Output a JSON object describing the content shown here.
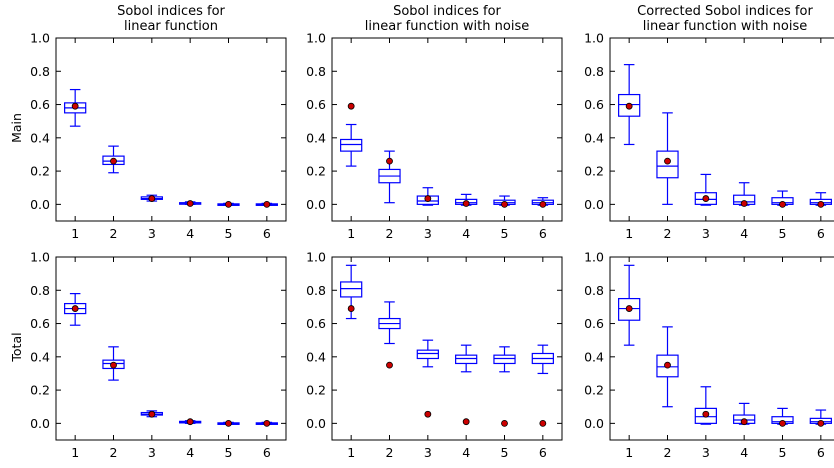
{
  "figure": {
    "row_labels": [
      "Main",
      "Total"
    ],
    "colors": {
      "box": "#0000ff",
      "median": "#0000ff",
      "point_fill": "#cc0000",
      "point_edge": "#000000",
      "frame": "#000000"
    }
  },
  "chart_data": [
    {
      "type": "box",
      "title": [
        "Sobol indices for",
        "linear function"
      ],
      "ylabel": "Main",
      "categories": [
        "1",
        "2",
        "3",
        "4",
        "5",
        "6"
      ],
      "ylim": [
        -0.1,
        1.0
      ],
      "yticks": [
        "0.0",
        "0.2",
        "0.4",
        "0.6",
        "0.8",
        "1.0"
      ],
      "boxes": [
        {
          "whislo": 0.47,
          "q1": 0.55,
          "med": 0.58,
          "q3": 0.61,
          "whishi": 0.69
        },
        {
          "whislo": 0.19,
          "q1": 0.24,
          "med": 0.26,
          "q3": 0.29,
          "whishi": 0.35
        },
        {
          "whislo": 0.02,
          "q1": 0.03,
          "med": 0.035,
          "q3": 0.045,
          "whishi": 0.055
        },
        {
          "whislo": 0.0,
          "q1": 0.005,
          "med": 0.007,
          "q3": 0.01,
          "whishi": 0.015
        },
        {
          "whislo": -0.005,
          "q1": -0.002,
          "med": 0.0,
          "q3": 0.003,
          "whishi": 0.006
        },
        {
          "whislo": -0.005,
          "q1": -0.002,
          "med": 0.0,
          "q3": 0.003,
          "whishi": 0.006
        }
      ],
      "points": [
        0.59,
        0.26,
        0.035,
        0.005,
        0.0,
        0.0
      ]
    },
    {
      "type": "box",
      "title": [
        "Sobol indices for",
        "linear function with noise"
      ],
      "ylabel": "",
      "categories": [
        "1",
        "2",
        "3",
        "4",
        "5",
        "6"
      ],
      "ylim": [
        -0.1,
        1.0
      ],
      "yticks": [
        "0.0",
        "0.2",
        "0.4",
        "0.6",
        "0.8",
        "1.0"
      ],
      "boxes": [
        {
          "whislo": 0.23,
          "q1": 0.32,
          "med": 0.36,
          "q3": 0.39,
          "whishi": 0.48
        },
        {
          "whislo": 0.01,
          "q1": 0.13,
          "med": 0.17,
          "q3": 0.21,
          "whishi": 0.32
        },
        {
          "whislo": -0.005,
          "q1": 0.0,
          "med": 0.02,
          "q3": 0.05,
          "whishi": 0.1
        },
        {
          "whislo": -0.005,
          "q1": 0.0,
          "med": 0.01,
          "q3": 0.03,
          "whishi": 0.06
        },
        {
          "whislo": -0.005,
          "q1": 0.0,
          "med": 0.01,
          "q3": 0.025,
          "whishi": 0.05
        },
        {
          "whislo": -0.005,
          "q1": 0.0,
          "med": 0.01,
          "q3": 0.025,
          "whishi": 0.04
        }
      ],
      "points": [
        0.59,
        0.26,
        0.035,
        0.005,
        0.0,
        0.0
      ]
    },
    {
      "type": "box",
      "title": [
        "Corrected Sobol indices for",
        "linear function with noise"
      ],
      "ylabel": "",
      "categories": [
        "1",
        "2",
        "3",
        "4",
        "5",
        "6"
      ],
      "ylim": [
        -0.1,
        1.0
      ],
      "yticks": [
        "0.0",
        "0.2",
        "0.4",
        "0.6",
        "0.8",
        "1.0"
      ],
      "boxes": [
        {
          "whislo": 0.36,
          "q1": 0.53,
          "med": 0.6,
          "q3": 0.66,
          "whishi": 0.84
        },
        {
          "whislo": 0.0,
          "q1": 0.16,
          "med": 0.23,
          "q3": 0.32,
          "whishi": 0.55
        },
        {
          "whislo": -0.005,
          "q1": 0.0,
          "med": 0.03,
          "q3": 0.07,
          "whishi": 0.18
        },
        {
          "whislo": -0.005,
          "q1": 0.0,
          "med": 0.015,
          "q3": 0.055,
          "whishi": 0.13
        },
        {
          "whislo": -0.005,
          "q1": 0.0,
          "med": 0.01,
          "q3": 0.04,
          "whishi": 0.08
        },
        {
          "whislo": -0.005,
          "q1": 0.0,
          "med": 0.01,
          "q3": 0.03,
          "whishi": 0.07
        }
      ],
      "points": [
        0.59,
        0.26,
        0.035,
        0.005,
        0.0,
        0.0
      ]
    },
    {
      "type": "box",
      "title": [],
      "ylabel": "Total",
      "categories": [
        "1",
        "2",
        "3",
        "4",
        "5",
        "6"
      ],
      "ylim": [
        -0.1,
        1.0
      ],
      "yticks": [
        "0.0",
        "0.2",
        "0.4",
        "0.6",
        "0.8",
        "1.0"
      ],
      "boxes": [
        {
          "whislo": 0.59,
          "q1": 0.66,
          "med": 0.69,
          "q3": 0.72,
          "whishi": 0.78
        },
        {
          "whislo": 0.26,
          "q1": 0.33,
          "med": 0.36,
          "q3": 0.38,
          "whishi": 0.46
        },
        {
          "whislo": 0.04,
          "q1": 0.05,
          "med": 0.055,
          "q3": 0.065,
          "whishi": 0.075
        },
        {
          "whislo": 0.0,
          "q1": 0.005,
          "med": 0.008,
          "q3": 0.012,
          "whishi": 0.016
        },
        {
          "whislo": -0.005,
          "q1": -0.002,
          "med": 0.0,
          "q3": 0.003,
          "whishi": 0.006
        },
        {
          "whislo": -0.005,
          "q1": -0.002,
          "med": 0.0,
          "q3": 0.003,
          "whishi": 0.006
        }
      ],
      "points": [
        0.69,
        0.35,
        0.055,
        0.01,
        0.0,
        0.0
      ]
    },
    {
      "type": "box",
      "title": [],
      "ylabel": "",
      "categories": [
        "1",
        "2",
        "3",
        "4",
        "5",
        "6"
      ],
      "ylim": [
        -0.1,
        1.0
      ],
      "yticks": [
        "0.0",
        "0.2",
        "0.4",
        "0.6",
        "0.8",
        "1.0"
      ],
      "boxes": [
        {
          "whislo": 0.63,
          "q1": 0.76,
          "med": 0.81,
          "q3": 0.85,
          "whishi": 0.95
        },
        {
          "whislo": 0.48,
          "q1": 0.57,
          "med": 0.6,
          "q3": 0.63,
          "whishi": 0.73
        },
        {
          "whislo": 0.34,
          "q1": 0.39,
          "med": 0.42,
          "q3": 0.44,
          "whishi": 0.5
        },
        {
          "whislo": 0.31,
          "q1": 0.36,
          "med": 0.39,
          "q3": 0.41,
          "whishi": 0.47
        },
        {
          "whislo": 0.31,
          "q1": 0.36,
          "med": 0.39,
          "q3": 0.41,
          "whishi": 0.46
        },
        {
          "whislo": 0.3,
          "q1": 0.36,
          "med": 0.39,
          "q3": 0.42,
          "whishi": 0.47
        }
      ],
      "points": [
        0.69,
        0.35,
        0.055,
        0.01,
        0.0,
        0.0
      ]
    },
    {
      "type": "box",
      "title": [],
      "ylabel": "",
      "categories": [
        "1",
        "2",
        "3",
        "4",
        "5",
        "6"
      ],
      "ylim": [
        -0.1,
        1.0
      ],
      "yticks": [
        "0.0",
        "0.2",
        "0.4",
        "0.6",
        "0.8",
        "1.0"
      ],
      "boxes": [
        {
          "whislo": 0.47,
          "q1": 0.62,
          "med": 0.69,
          "q3": 0.75,
          "whishi": 0.95
        },
        {
          "whislo": 0.1,
          "q1": 0.28,
          "med": 0.34,
          "q3": 0.41,
          "whishi": 0.58
        },
        {
          "whislo": -0.005,
          "q1": 0.0,
          "med": 0.04,
          "q3": 0.09,
          "whishi": 0.22
        },
        {
          "whislo": -0.005,
          "q1": 0.0,
          "med": 0.02,
          "q3": 0.05,
          "whishi": 0.12
        },
        {
          "whislo": -0.005,
          "q1": 0.0,
          "med": 0.01,
          "q3": 0.04,
          "whishi": 0.09
        },
        {
          "whislo": -0.005,
          "q1": 0.0,
          "med": 0.01,
          "q3": 0.03,
          "whishi": 0.08
        }
      ],
      "points": [
        0.69,
        0.35,
        0.055,
        0.01,
        0.0,
        0.0
      ]
    }
  ]
}
